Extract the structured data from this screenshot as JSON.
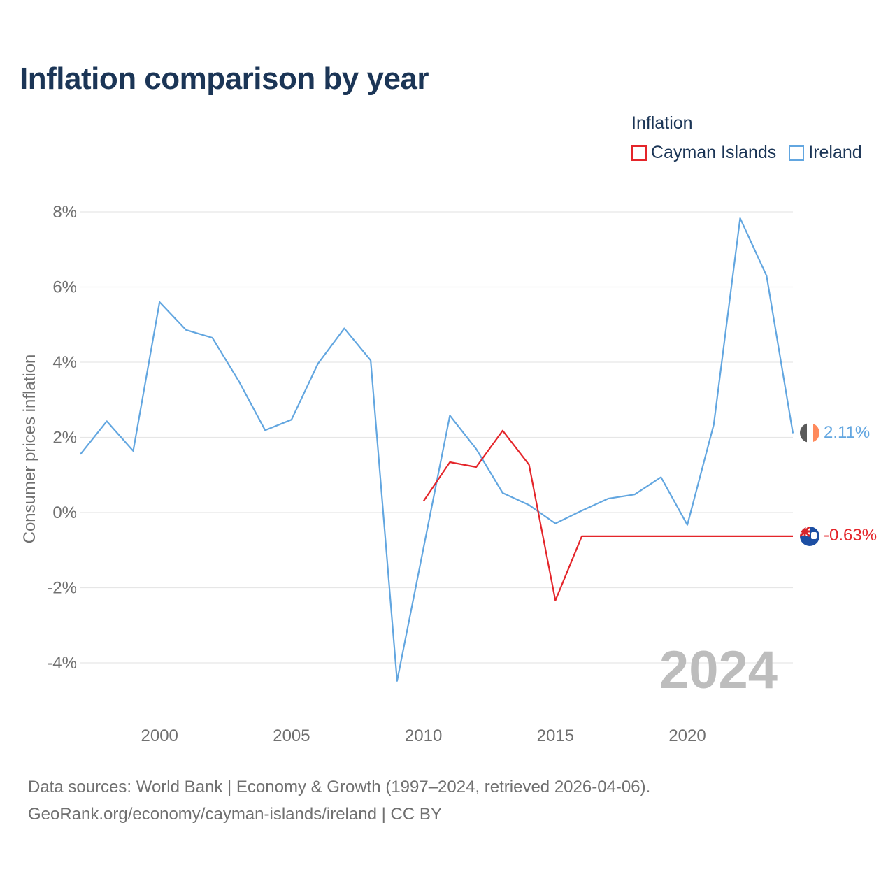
{
  "title": "Inflation comparison by year",
  "legend": {
    "title": "Inflation",
    "items": [
      {
        "label": "Cayman Islands",
        "color": "#e4252a"
      },
      {
        "label": "Ireland",
        "color": "#62a6e0"
      }
    ]
  },
  "source": {
    "line1": "Data sources: World Bank | Economy & Growth (1997–2024, retrieved 2026-04-06).",
    "line2": "GeoRank.org/economy/cayman-islands/ireland | CC BY"
  },
  "chart_data": {
    "type": "line",
    "ylabel": "Consumer prices inflation",
    "xlabel": "",
    "xlim": [
      1997,
      2024
    ],
    "ylim": [
      -4.8,
      8.5
    ],
    "y_ticks": [
      8,
      6,
      4,
      2,
      0,
      -2,
      -4
    ],
    "y_tick_labels": [
      "8%",
      "6%",
      "4%",
      "2%",
      "0%",
      "-2%",
      "-4%"
    ],
    "x_ticks": [
      2000,
      2005,
      2010,
      2015,
      2020
    ],
    "x_tick_labels": [
      "2000",
      "2005",
      "2010",
      "2015",
      "2020"
    ],
    "year_watermark": "2024",
    "grid": true,
    "series": [
      {
        "name": "Ireland",
        "color": "#62a6e0",
        "end_label": "2.11%",
        "flag": "ireland-flag",
        "x": [
          1997,
          1998,
          1999,
          2000,
          2001,
          2002,
          2003,
          2004,
          2005,
          2006,
          2007,
          2008,
          2009,
          2010,
          2011,
          2012,
          2013,
          2014,
          2015,
          2016,
          2017,
          2018,
          2019,
          2020,
          2021,
          2022,
          2023,
          2024
        ],
        "values": [
          1.55,
          2.43,
          1.64,
          5.6,
          4.86,
          4.65,
          3.5,
          2.19,
          2.47,
          3.96,
          4.9,
          4.05,
          -4.48,
          -0.95,
          2.58,
          1.69,
          0.52,
          0.2,
          -0.29,
          0.05,
          0.37,
          0.48,
          0.94,
          -0.33,
          2.34,
          7.83,
          6.3,
          2.11
        ]
      },
      {
        "name": "Cayman Islands",
        "color": "#e4252a",
        "end_label": "-0.63%",
        "flag": "cayman-islands-flag",
        "x": [
          2010,
          2011,
          2012,
          2013,
          2014,
          2015,
          2016,
          2017,
          2018,
          2019,
          2020,
          2021,
          2022,
          2023,
          2024
        ],
        "values": [
          0.3,
          1.34,
          1.21,
          2.18,
          1.27,
          -2.34,
          -0.63,
          -0.63,
          -0.63,
          -0.63,
          -0.63,
          -0.63,
          -0.63,
          -0.63,
          -0.63
        ]
      }
    ]
  }
}
